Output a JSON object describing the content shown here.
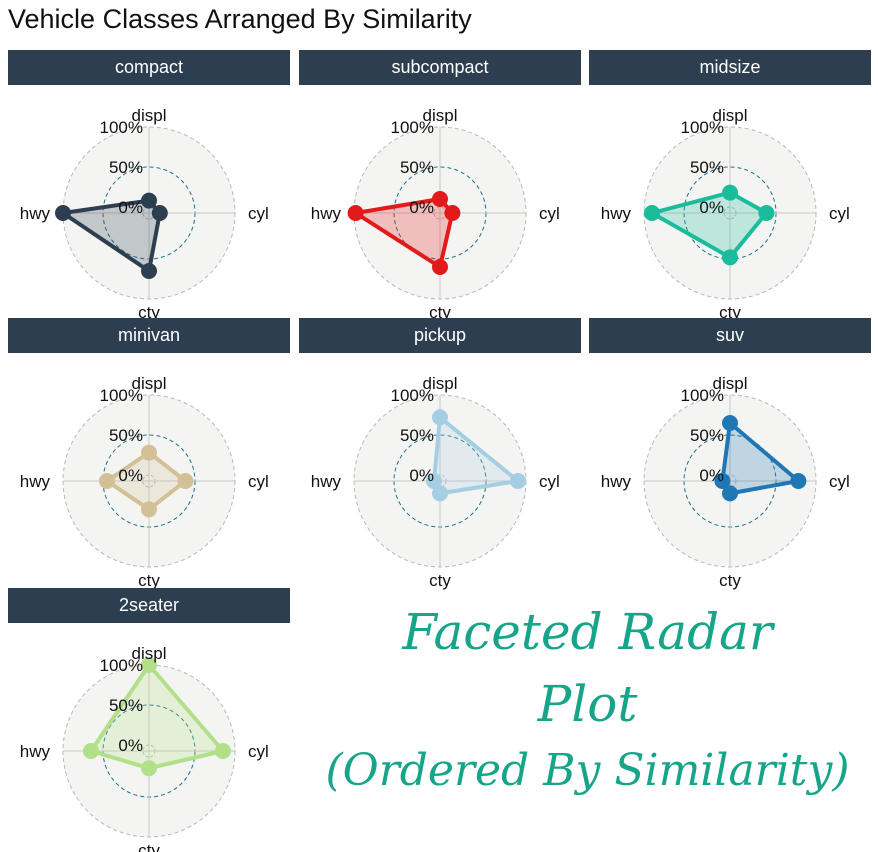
{
  "title": "Vehicle Classes Arranged By Similarity",
  "caption": {
    "line1": "Faceted Radar",
    "line2": "Plot",
    "line3": "(Ordered By Similarity)",
    "color": "#17a589"
  },
  "chart_data": {
    "type": "radar",
    "axes": [
      "displ",
      "cyl",
      "cty",
      "hwy"
    ],
    "rticks": [
      "0%",
      "50%",
      "100%"
    ],
    "grid": "dashed circles at 0%, 50%, 100%",
    "strip_color": "#2c3e50",
    "facets": [
      {
        "name": "compact",
        "color": "#2c3e50",
        "values": {
          "displ": 0.08,
          "cyl": 0.06,
          "cty": 0.65,
          "hwy": 1.0
        }
      },
      {
        "name": "subcompact",
        "color": "#e31a1c",
        "values": {
          "displ": 0.1,
          "cyl": 0.08,
          "cty": 0.6,
          "hwy": 0.98
        }
      },
      {
        "name": "midsize",
        "color": "#1abc9c",
        "values": {
          "displ": 0.18,
          "cyl": 0.38,
          "cty": 0.48,
          "hwy": 0.9
        }
      },
      {
        "name": "minivan",
        "color": "#d2c196",
        "values": {
          "displ": 0.28,
          "cyl": 0.38,
          "cty": 0.28,
          "hwy": 0.45
        }
      },
      {
        "name": "pickup",
        "color": "#a6cee3",
        "values": {
          "displ": 0.72,
          "cyl": 0.9,
          "cty": 0.08,
          "hwy": 0.0
        }
      },
      {
        "name": "suv",
        "color": "#1f78b4",
        "values": {
          "displ": 0.65,
          "cyl": 0.78,
          "cty": 0.08,
          "hwy": 0.02
        }
      },
      {
        "name": "2seater",
        "color": "#b2df8a",
        "values": {
          "displ": 1.0,
          "cyl": 0.85,
          "cty": 0.14,
          "hwy": 0.65
        }
      }
    ]
  }
}
